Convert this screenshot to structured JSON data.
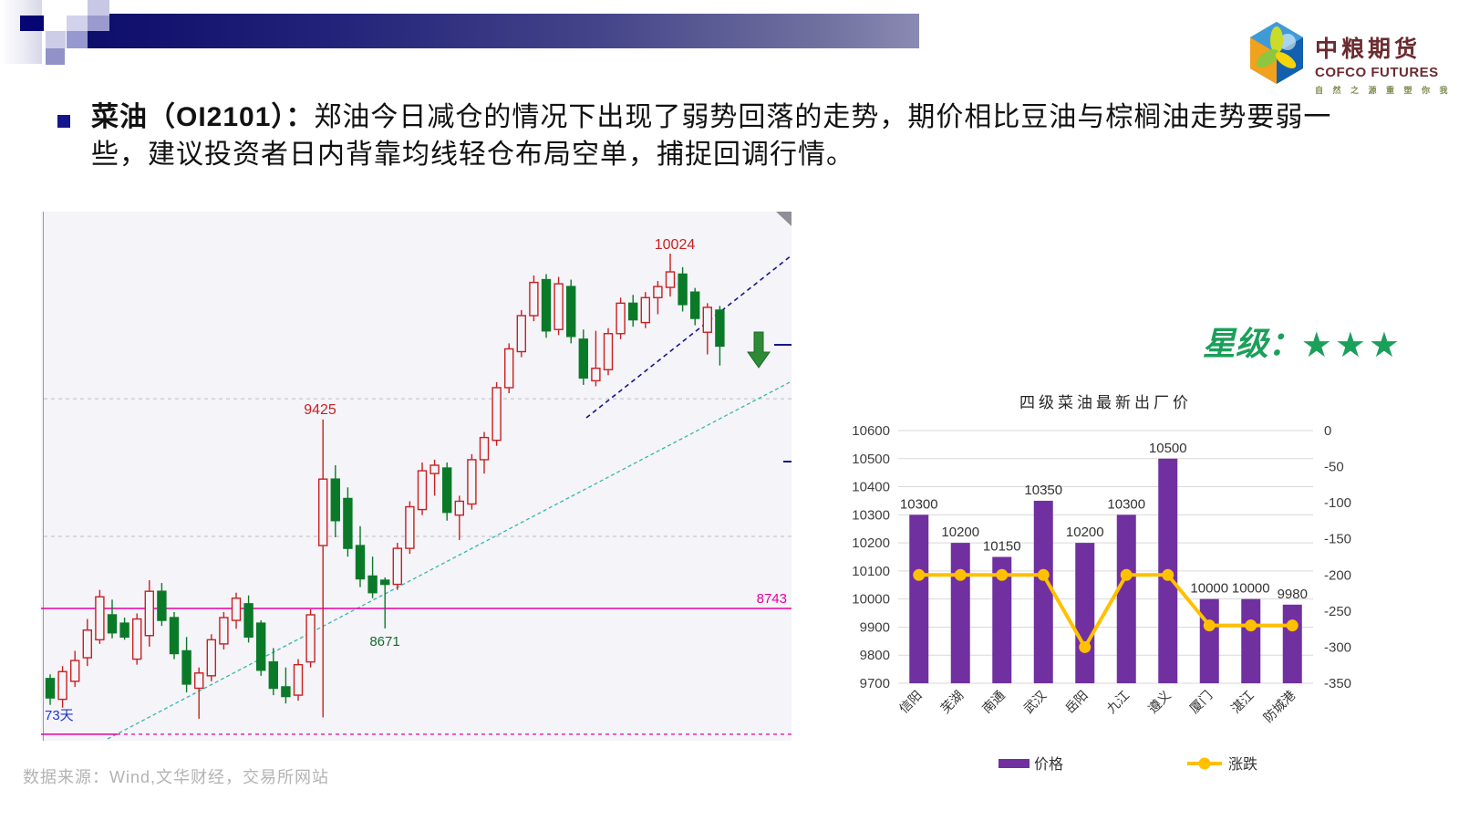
{
  "slide": {
    "bullet_bold": "菜油（OI2101）：",
    "bullet_rest": "郑油今日减仓的情况下出现了弱势回落的走势，期价相比豆油与棕榈油走势要弱一些，建议投资者日内背靠均线轻仓布局空单，捕捉回调行情。",
    "source_note": "数据来源：Wind,文华财经，交易所网站"
  },
  "logo": {
    "name_cn": "中粮期货",
    "name_en": "COFCO FUTURES",
    "slogan": "自 然 之 源  重 塑 你 我"
  },
  "rating": {
    "label": "星级：",
    "stars": "★★★",
    "color": "#1aa05a"
  },
  "colors": {
    "candle_up": "#c82020",
    "candle_down": "#0a7a28",
    "support_magenta": "#e6009e",
    "trend_teal": "#35b8a8",
    "trend_navy": "#16168c",
    "bar_purple": "#7030A0",
    "line_orange": "#FFC000",
    "rating_green": "#1aa05a"
  },
  "chart_data": [
    {
      "type": "candlestick",
      "annotations": {
        "peak": "10024",
        "swing": "9425",
        "low": "8671",
        "support": "8743",
        "days": "73天"
      },
      "support_level": 8743,
      "lower_dashed_level": 8289,
      "gridline_levels": [
        9500,
        9003
      ],
      "candles": [
        [
          8490,
          8505,
          8395,
          8420
        ],
        [
          8415,
          8535,
          8385,
          8515
        ],
        [
          8480,
          8590,
          8460,
          8555
        ],
        [
          8565,
          8705,
          8535,
          8665
        ],
        [
          8630,
          8810,
          8615,
          8785
        ],
        [
          8720,
          8775,
          8635,
          8655
        ],
        [
          8690,
          8710,
          8630,
          8640
        ],
        [
          8560,
          8725,
          8540,
          8705
        ],
        [
          8645,
          8845,
          8605,
          8805
        ],
        [
          8805,
          8835,
          8680,
          8700
        ],
        [
          8710,
          8730,
          8560,
          8580
        ],
        [
          8590,
          8640,
          8440,
          8470
        ],
        [
          8455,
          8530,
          8345,
          8510
        ],
        [
          8500,
          8650,
          8480,
          8630
        ],
        [
          8615,
          8730,
          8595,
          8710
        ],
        [
          8700,
          8800,
          8670,
          8780
        ],
        [
          8760,
          8790,
          8620,
          8640
        ],
        [
          8690,
          8700,
          8500,
          8520
        ],
        [
          8550,
          8600,
          8430,
          8455
        ],
        [
          8460,
          8530,
          8400,
          8425
        ],
        [
          8430,
          8560,
          8410,
          8540
        ],
        [
          8550,
          8740,
          8530,
          8720
        ],
        [
          8970,
          9425,
          8350,
          9210
        ],
        [
          9210,
          9260,
          9000,
          9060
        ],
        [
          9140,
          9180,
          8930,
          8960
        ],
        [
          8970,
          9040,
          8820,
          8850
        ],
        [
          8860,
          8930,
          8780,
          8800
        ],
        [
          8845,
          8855,
          8671,
          8830
        ],
        [
          8830,
          8980,
          8810,
          8960
        ],
        [
          8960,
          9130,
          8940,
          9110
        ],
        [
          9100,
          9270,
          9080,
          9240
        ],
        [
          9230,
          9280,
          9150,
          9260
        ],
        [
          9250,
          9270,
          9060,
          9090
        ],
        [
          9080,
          9150,
          8990,
          9130
        ],
        [
          9120,
          9300,
          9100,
          9280
        ],
        [
          9280,
          9380,
          9230,
          9360
        ],
        [
          9350,
          9560,
          9330,
          9540
        ],
        [
          9540,
          9700,
          9520,
          9680
        ],
        [
          9670,
          9820,
          9650,
          9800
        ],
        [
          9800,
          9945,
          9780,
          9920
        ],
        [
          9930,
          9950,
          9720,
          9745
        ],
        [
          9750,
          9940,
          9730,
          9915
        ],
        [
          9905,
          9930,
          9700,
          9725
        ],
        [
          9715,
          9750,
          9550,
          9575
        ],
        [
          9565,
          9745,
          9545,
          9610
        ],
        [
          9605,
          9755,
          9585,
          9735
        ],
        [
          9735,
          9865,
          9715,
          9845
        ],
        [
          9845,
          9875,
          9760,
          9785
        ],
        [
          9775,
          9885,
          9755,
          9865
        ],
        [
          9865,
          9925,
          9805,
          9905
        ],
        [
          9902,
          10024,
          9869,
          9958
        ],
        [
          9950,
          9975,
          9815,
          9840
        ],
        [
          9885,
          9900,
          9765,
          9790
        ],
        [
          9740,
          9845,
          9660,
          9830
        ],
        [
          9820,
          9835,
          9620,
          9690
        ]
      ]
    },
    {
      "type": "bar+line",
      "title": "四级菜油最新出厂价",
      "categories": [
        "信阳",
        "芜湖",
        "南通",
        "武汉",
        "岳阳",
        "九江",
        "遵义",
        "厦门",
        "湛江",
        "防城港"
      ],
      "series": [
        {
          "name": "价格",
          "type": "bar",
          "axis": "left",
          "color": "#7030A0",
          "values": [
            10300,
            10200,
            10150,
            10350,
            10200,
            10300,
            10500,
            10000,
            10000,
            9980
          ]
        },
        {
          "name": "涨跌",
          "type": "line",
          "axis": "right",
          "color": "#FFC000",
          "values": [
            -200,
            -200,
            -200,
            -200,
            -300,
            -200,
            -200,
            -270,
            -270,
            -270
          ]
        }
      ],
      "left_axis": {
        "min": 9700,
        "max": 10600,
        "step": 100,
        "labels": [
          "10600",
          "10500",
          "10400",
          "10300",
          "10200",
          "10100",
          "10000",
          "9900",
          "9800",
          "9700"
        ]
      },
      "right_axis": {
        "min": -350,
        "max": 0,
        "step": 50,
        "labels": [
          "0",
          "-50",
          "-100",
          "-150",
          "-200",
          "-250",
          "-300",
          "-350"
        ]
      },
      "grid": true,
      "legend_position": "bottom"
    }
  ]
}
